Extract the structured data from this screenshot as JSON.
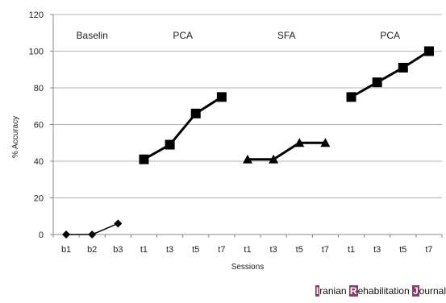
{
  "chart_data": {
    "type": "line",
    "ylabel": "% Accuracy",
    "xlabel": "Sessions",
    "ylim": [
      0,
      120
    ],
    "yticks": [
      0,
      20,
      40,
      60,
      80,
      100,
      120
    ],
    "x_tick_labels": [
      "b1",
      "b2",
      "b3",
      "t1",
      "t3",
      "t5",
      "t7",
      "t1",
      "t3",
      "t5",
      "t7",
      "t1",
      "t3",
      "t5",
      "t7"
    ],
    "grid": "horizontal",
    "phases": [
      {
        "label": "Baselin",
        "marker": "diamond",
        "start": 0,
        "values": [
          0,
          0,
          6
        ]
      },
      {
        "label": "PCA",
        "marker": "square",
        "start": 3,
        "values": [
          41,
          49,
          66,
          75
        ]
      },
      {
        "label": "SFA",
        "marker": "triangle",
        "start": 7,
        "values": [
          41,
          41,
          50,
          50
        ]
      },
      {
        "label": "PCA",
        "marker": "square",
        "start": 11,
        "values": [
          75,
          83,
          91,
          100
        ]
      }
    ]
  },
  "watermark": {
    "parts": [
      {
        "cap": "I",
        "rest": "ranian "
      },
      {
        "cap": "R",
        "rest": "ehabilitation "
      },
      {
        "cap": "J",
        "rest": "ournal"
      }
    ]
  }
}
